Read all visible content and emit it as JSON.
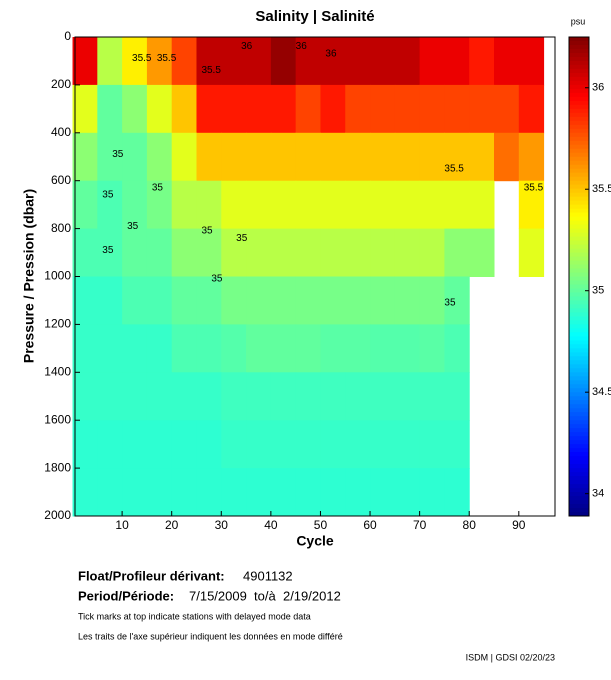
{
  "chart_data": {
    "type": "heatmap",
    "title": "Salinity | Salinité",
    "colorbar_label": "psu",
    "xlabel": "Cycle",
    "ylabel": "Pressure / Pression (dbar)",
    "x": [
      2.5,
      7.5,
      12.5,
      17.5,
      22.5,
      27.5,
      32.5,
      37.5,
      42.5,
      47.5,
      52.5,
      57.5,
      62.5,
      67.5,
      72.5,
      77.5,
      82.5,
      87.5,
      92.5
    ],
    "y": [
      100,
      300,
      500,
      700,
      900,
      1100,
      1300,
      1500,
      1700,
      1900
    ],
    "z": [
      [
        36.0,
        35.2,
        35.4,
        35.6,
        35.8,
        36.1,
        36.1,
        36.1,
        36.2,
        36.1,
        36.1,
        36.1,
        36.1,
        36.1,
        36.0,
        36.0,
        35.9,
        36.0,
        36.0
      ],
      [
        35.3,
        35.0,
        35.1,
        35.3,
        35.5,
        35.9,
        35.9,
        35.9,
        35.9,
        35.8,
        35.9,
        35.8,
        35.8,
        35.8,
        35.8,
        35.8,
        35.8,
        35.8,
        35.9
      ],
      [
        35.1,
        35.0,
        35.0,
        35.1,
        35.3,
        35.5,
        35.5,
        35.5,
        35.5,
        35.5,
        35.5,
        35.5,
        35.5,
        35.5,
        35.5,
        35.5,
        35.5,
        35.7,
        35.6
      ],
      [
        35.0,
        34.95,
        35.0,
        35.05,
        35.2,
        35.2,
        35.3,
        35.3,
        35.3,
        35.3,
        35.3,
        35.3,
        35.3,
        35.3,
        35.3,
        35.3,
        35.3,
        null,
        35.4
      ],
      [
        34.95,
        34.95,
        35.0,
        35.0,
        35.1,
        35.1,
        35.2,
        35.2,
        35.2,
        35.2,
        35.2,
        35.2,
        35.2,
        35.2,
        35.2,
        35.1,
        35.1,
        null,
        35.3
      ],
      [
        34.9,
        34.9,
        34.95,
        34.95,
        35.0,
        35.0,
        35.05,
        35.05,
        35.05,
        35.05,
        35.05,
        35.05,
        35.05,
        35.05,
        35.05,
        35.0,
        null,
        null,
        null
      ],
      [
        34.9,
        34.9,
        34.9,
        34.9,
        34.95,
        34.95,
        34.97,
        35.0,
        35.0,
        35.0,
        34.98,
        34.98,
        34.97,
        34.97,
        34.98,
        34.95,
        null,
        null,
        null
      ],
      [
        34.9,
        34.9,
        34.9,
        34.9,
        34.9,
        34.9,
        34.92,
        34.92,
        34.92,
        34.92,
        34.92,
        34.92,
        34.92,
        34.92,
        34.92,
        34.92,
        null,
        null,
        null
      ],
      [
        34.88,
        34.88,
        34.88,
        34.88,
        34.88,
        34.88,
        34.9,
        34.9,
        34.9,
        34.9,
        34.9,
        34.9,
        34.9,
        34.9,
        34.9,
        34.9,
        null,
        null,
        null
      ],
      [
        34.88,
        34.88,
        34.88,
        34.88,
        34.88,
        34.88,
        34.88,
        34.88,
        34.88,
        34.88,
        34.88,
        34.88,
        34.88,
        34.88,
        34.88,
        34.88,
        null,
        null,
        null
      ]
    ],
    "xlim": [
      0.5,
      97.3
    ],
    "xticks": [
      10,
      20,
      30,
      40,
      50,
      60,
      70,
      80,
      90
    ],
    "ylim": [
      0,
      2000
    ],
    "yticks": [
      0,
      200,
      400,
      600,
      800,
      1000,
      1200,
      1400,
      1600,
      1800,
      2000
    ],
    "zlim": [
      33.89,
      36.25
    ],
    "zticks": [
      34,
      34.5,
      35,
      35.5,
      36
    ],
    "colormap": "jet",
    "contour_labels": [
      {
        "label": "35.5",
        "cycle": 12,
        "pressure": 90
      },
      {
        "label": "35.5",
        "cycle": 17,
        "pressure": 90
      },
      {
        "label": "35.5",
        "cycle": 26,
        "pressure": 140
      },
      {
        "label": "36",
        "cycle": 34,
        "pressure": 40
      },
      {
        "label": "36",
        "cycle": 45,
        "pressure": 40
      },
      {
        "label": "36",
        "cycle": 51,
        "pressure": 70
      },
      {
        "label": "35",
        "cycle": 8,
        "pressure": 490
      },
      {
        "label": "35",
        "cycle": 6,
        "pressure": 660
      },
      {
        "label": "35",
        "cycle": 16,
        "pressure": 630
      },
      {
        "label": "35",
        "cycle": 11,
        "pressure": 790
      },
      {
        "label": "35",
        "cycle": 26,
        "pressure": 810
      },
      {
        "label": "35",
        "cycle": 33,
        "pressure": 840
      },
      {
        "label": "35",
        "cycle": 6,
        "pressure": 890
      },
      {
        "label": "35",
        "cycle": 28,
        "pressure": 1010
      },
      {
        "label": "35.5",
        "cycle": 75,
        "pressure": 550
      },
      {
        "label": "35.5",
        "cycle": 91,
        "pressure": 630
      },
      {
        "label": "35",
        "cycle": 75,
        "pressure": 1110
      }
    ],
    "footer": {
      "float_label": "Float/Profileur dérivant:",
      "float_id": "4901132",
      "period_label": "Period/Période:",
      "period": "7/15/2009  to/à  2/19/2012",
      "note_en": "Tick marks at top indicate stations with delayed mode data",
      "note_fr": "Les traits de l'axe supérieur indiquent les données en mode différé",
      "credit": "ISDM | GDSI 02/20/23"
    }
  }
}
